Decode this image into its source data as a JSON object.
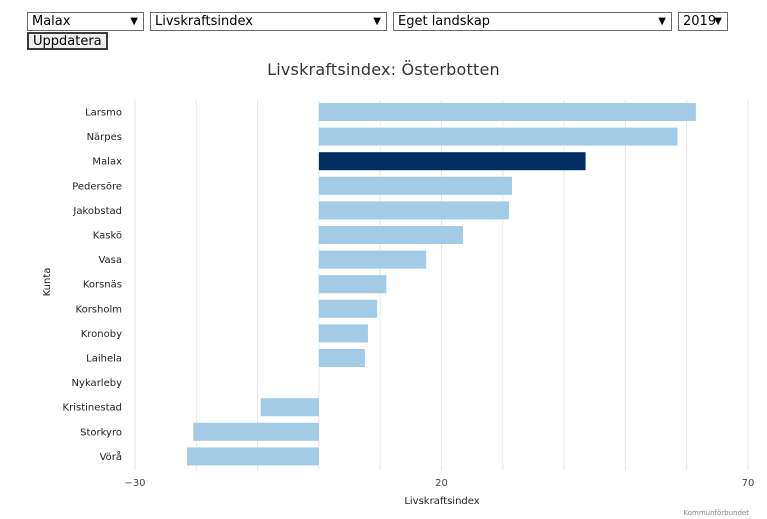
{
  "controls": {
    "municipality": "Malax",
    "indicator": "Livskraftsindex",
    "region": "Eget landskap",
    "year": "2019",
    "update_label": "Uppdatera"
  },
  "source": "Kommunförbundet",
  "colors": {
    "bar": "#a3cbe5",
    "highlight": "#002d62",
    "grid": "#e6e6e6"
  },
  "chart_data": {
    "type": "bar",
    "orientation": "horizontal",
    "title": "Livskraftsindex: Österbotten",
    "xlabel": "Livskraftsindex",
    "ylabel": "Kunta",
    "xlim": [
      -30,
      70
    ],
    "xticks": [
      -30,
      20,
      70
    ],
    "grid": true,
    "highlight": "Malax",
    "categories": [
      "Larsmo",
      "Närpes",
      "Malax",
      "Pedersöre",
      "Jakobstad",
      "Kaskö",
      "Vasa",
      "Korsnäs",
      "Korsholm",
      "Kronoby",
      "Laihela",
      "Nykarleby",
      "Kristinestad",
      "Storkyro",
      "Vörå"
    ],
    "values": [
      61.5,
      58.5,
      43.5,
      31.5,
      31,
      23.5,
      17.5,
      11,
      9.5,
      8,
      7.5,
      0,
      -9.5,
      -20.5,
      -21.5
    ]
  }
}
